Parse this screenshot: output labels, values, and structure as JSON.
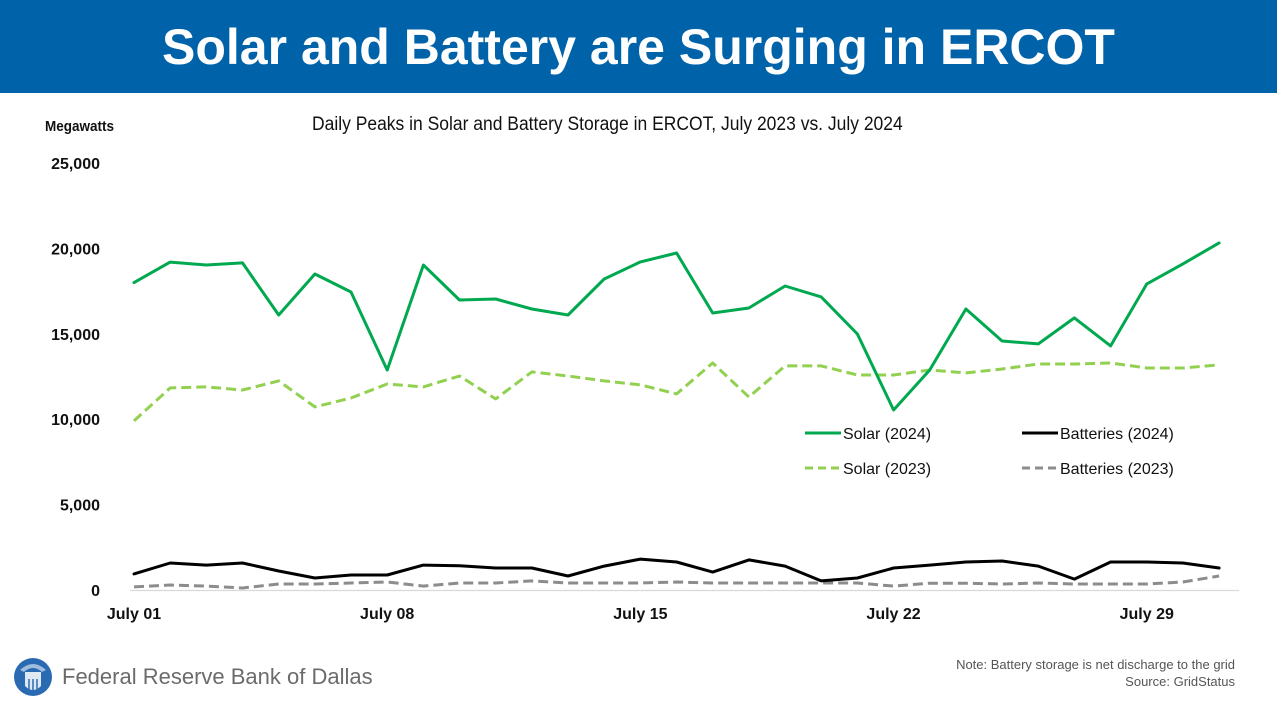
{
  "banner": {
    "title": "Solar and Battery are Surging in ERCOT",
    "color": "#0062A8"
  },
  "footer": {
    "org_name": "Federal Reserve Bank of Dallas",
    "note": "Note: Battery storage is net discharge to the grid",
    "source": "Source: GridStatus"
  },
  "chart_data": {
    "type": "line",
    "title": "Daily Peaks in Solar and Battery Storage in ERCOT, July 2023 vs. July 2024",
    "ylabel": "Megawatts",
    "xlabel": "",
    "ylim": [
      0,
      25000
    ],
    "yticks": [
      0,
      5000,
      10000,
      15000,
      20000,
      25000
    ],
    "ytick_labels": [
      "0",
      "5,000",
      "10,000",
      "15,000",
      "20,000",
      "25,000"
    ],
    "x": [
      1,
      2,
      3,
      4,
      5,
      6,
      7,
      8,
      9,
      10,
      11,
      12,
      13,
      14,
      15,
      16,
      17,
      18,
      19,
      20,
      21,
      22,
      23,
      24,
      25,
      26,
      27,
      28,
      29,
      30,
      31
    ],
    "xticks": [
      1,
      8,
      15,
      22,
      29
    ],
    "xtick_labels": [
      "July 01",
      "July 08",
      "July 15",
      "July 22",
      "July 29"
    ],
    "grid": false,
    "legend_position": "center-right",
    "series": [
      {
        "name": "Solar (2024)",
        "color": "#00A94F",
        "style": "solid",
        "values": [
          18000,
          19200,
          19030,
          19150,
          16100,
          18500,
          17450,
          12880,
          19030,
          16980,
          17040,
          16450,
          16100,
          18210,
          19210,
          19730,
          16220,
          16510,
          17800,
          17160,
          14990,
          10540,
          12880,
          16450,
          14580,
          14410,
          15930,
          14290,
          17920,
          19090,
          20320
        ]
      },
      {
        "name": "Batteries (2024)",
        "color": "#000000",
        "style": "solid",
        "values": [
          940,
          1580,
          1460,
          1580,
          1110,
          700,
          880,
          880,
          1460,
          1420,
          1290,
          1290,
          820,
          1400,
          1810,
          1640,
          1050,
          1760,
          1400,
          530,
          700,
          1290,
          1460,
          1640,
          1700,
          1400,
          640,
          1640,
          1640,
          1580,
          1290
        ]
      },
      {
        "name": "Solar (2023)",
        "color": "#92D050",
        "style": "dashed",
        "values": [
          9900,
          11830,
          11890,
          11710,
          12240,
          10720,
          11240,
          12060,
          11890,
          12530,
          11190,
          12770,
          12530,
          12240,
          12010,
          11480,
          13290,
          11300,
          13120,
          13120,
          12590,
          12590,
          12880,
          12710,
          12940,
          13230,
          13230,
          13290,
          13000,
          13000,
          13180
        ]
      },
      {
        "name": "Batteries (2023)",
        "color": "#8C8C8C",
        "style": "dashed",
        "values": [
          180,
          290,
          230,
          120,
          350,
          350,
          410,
          470,
          230,
          410,
          410,
          530,
          410,
          410,
          410,
          470,
          410,
          410,
          410,
          410,
          410,
          230,
          400,
          400,
          350,
          410,
          350,
          350,
          350,
          470,
          820
        ]
      }
    ]
  }
}
